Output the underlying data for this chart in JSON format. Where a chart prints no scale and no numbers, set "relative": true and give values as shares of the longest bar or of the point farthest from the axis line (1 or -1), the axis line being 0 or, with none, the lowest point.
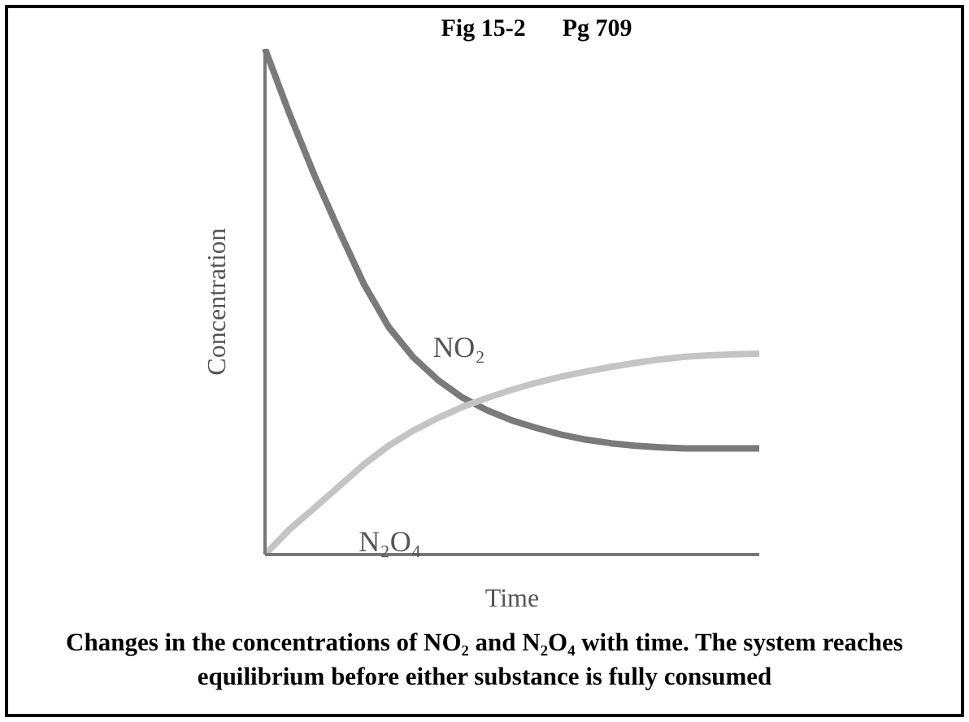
{
  "chart_data": {
    "type": "line",
    "title": "Fig 15-2      Pg 709",
    "xlabel": "Time",
    "ylabel": "Concentration",
    "relative": true,
    "categories": [
      null,
      null,
      null,
      null,
      null,
      null,
      null,
      null,
      null,
      null,
      null,
      null,
      null,
      null,
      null,
      null,
      null,
      null,
      null,
      null,
      null
    ],
    "series": [
      {
        "name": "NO₂",
        "color": "#7a7a7a",
        "values": [
          1,
          0.87,
          0.75,
          0.64,
          0.535,
          0.45,
          0.39,
          0.345,
          0.31,
          0.285,
          0.265,
          0.25,
          0.237,
          0.227,
          0.22,
          0.215,
          0.212,
          0.21,
          0.21,
          0.21,
          0.21
        ]
      },
      {
        "name": "N₂O₄",
        "color": "#c4c4c4",
        "values": [
          0,
          0.05,
          0.092,
          0.135,
          0.178,
          0.215,
          0.245,
          0.27,
          0.292,
          0.31,
          0.326,
          0.34,
          0.352,
          0.362,
          0.371,
          0.379,
          0.386,
          0.391,
          0.394,
          0.396,
          0.397
        ]
      }
    ],
    "annotations": [
      "Changes in the concentrations of NO₂ and N₂O₄ with time. The system reaches equilibrium before either substance is fully consumed"
    ]
  }
}
